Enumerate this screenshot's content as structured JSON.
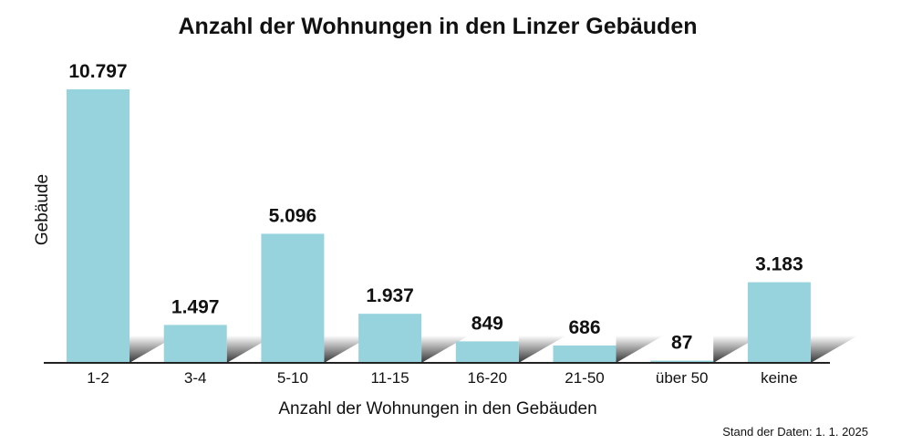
{
  "chart_data": {
    "type": "bar",
    "title": "Anzahl der Wohnungen in den Linzer Gebäuden",
    "xlabel": "Anzahl der Wohnungen in den Gebäuden",
    "ylabel": "Gebäude",
    "categories": [
      "1-2",
      "3-4",
      "5-10",
      "11-15",
      "16-20",
      "21-50",
      "über 50",
      "keine"
    ],
    "values": [
      10797,
      1497,
      5096,
      1937,
      849,
      686,
      87,
      3183
    ],
    "value_labels": [
      "10.797",
      "1.497",
      "5.096",
      "1.937",
      "849",
      "686",
      "87",
      "3.183"
    ],
    "ylim": [
      0,
      10797
    ],
    "grid": false,
    "bar_color": "#96d3dd",
    "footnote": "Stand der Daten: 1. 1. 2025"
  }
}
